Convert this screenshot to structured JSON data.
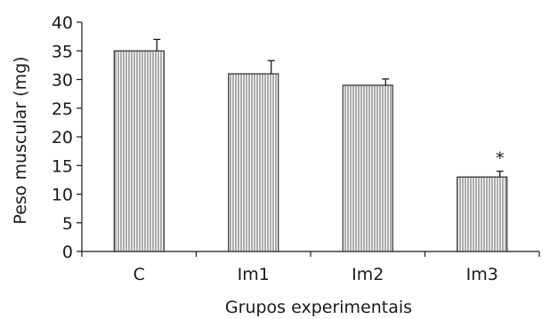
{
  "chart_data": {
    "type": "bar",
    "title": "",
    "xlabel": "Grupos experimentais",
    "ylabel": "Peso muscular (mg)",
    "ylim": [
      0,
      40
    ],
    "yticks": [
      0,
      5,
      10,
      15,
      20,
      25,
      30,
      35,
      40
    ],
    "categories": [
      "C",
      "Im1",
      "Im2",
      "Im3"
    ],
    "values": [
      35,
      31,
      29,
      13
    ],
    "errors": [
      2,
      2.3,
      1.1,
      1.0
    ],
    "annotations": [
      "",
      "",
      "",
      "*"
    ],
    "grid": false,
    "legend": "none",
    "bar_fill": "vertical-stripes",
    "colors": {
      "ink": "#1a1a1a",
      "background": "#ffffff"
    }
  }
}
